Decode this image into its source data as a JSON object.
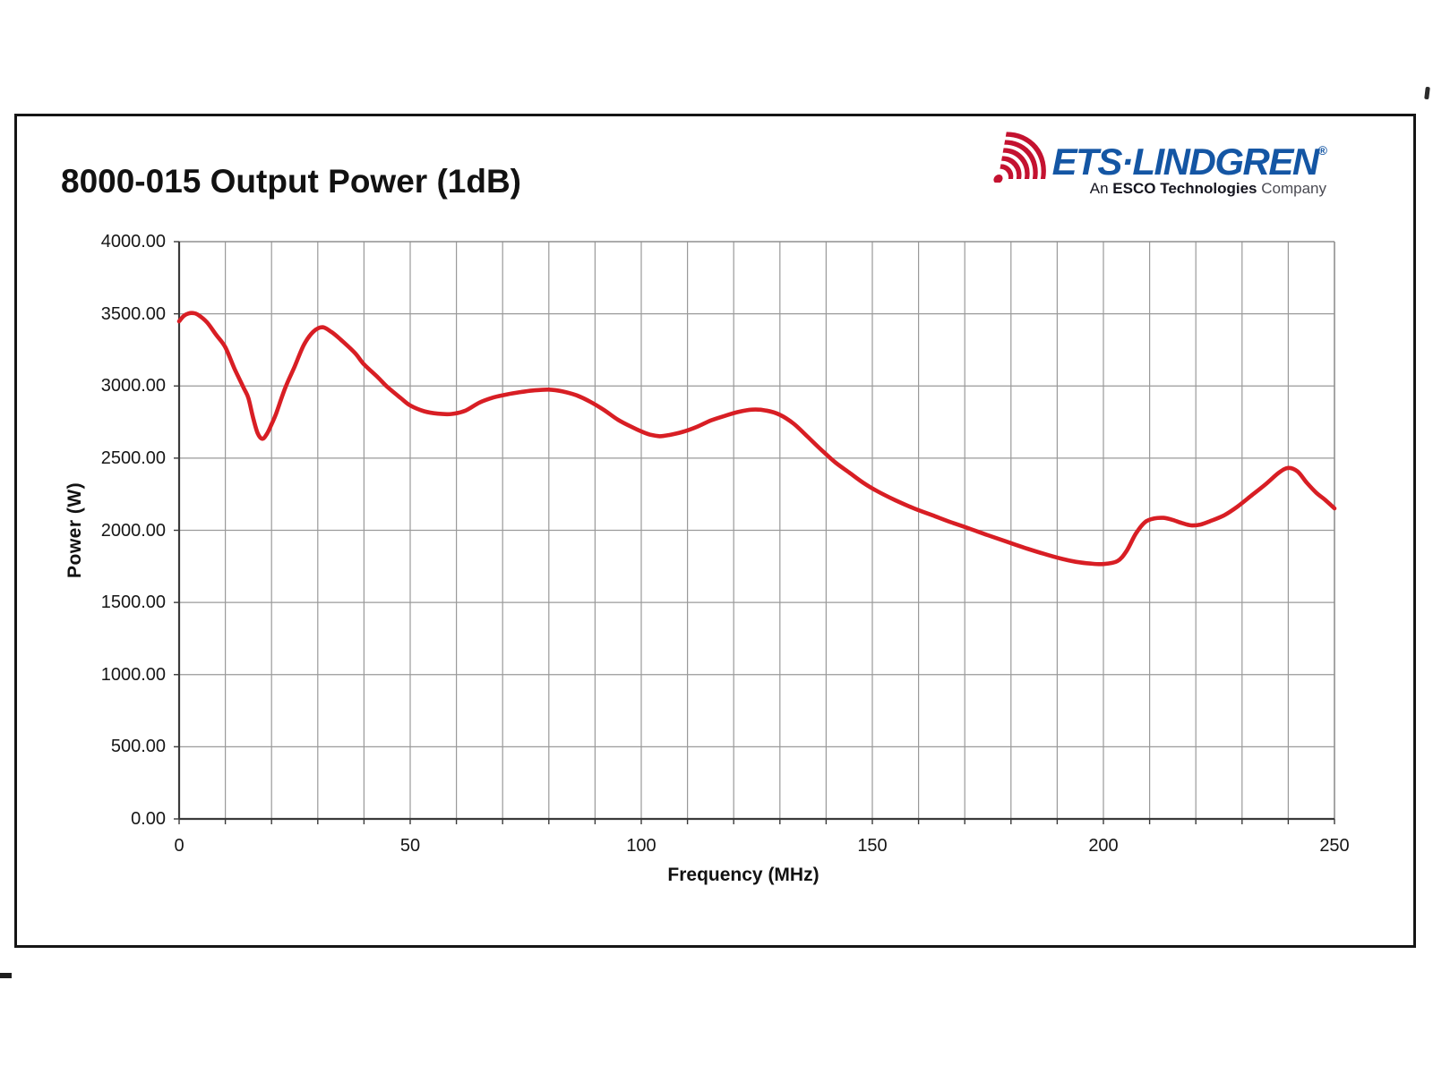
{
  "page_title": "8000-015 Output Power (1dB)",
  "logo": {
    "brand": "ETS·LINDGREN",
    "registered": "®",
    "tagline_prefix": "An ",
    "tagline_bold": "ESCO Technologies",
    "tagline_suffix": " Company",
    "brand_color": "#1456A4",
    "icon_color": "#C41230",
    "icon_name": "radio-waves-icon"
  },
  "chart_data": {
    "type": "line",
    "title": "8000-015 Output Power (1dB)",
    "xlabel": "Frequency (MHz)",
    "ylabel": "Power (W)",
    "xlim": [
      0,
      250
    ],
    "ylim": [
      0,
      4000
    ],
    "x_ticks": [
      0,
      50,
      100,
      150,
      200,
      250
    ],
    "x_tick_labels": [
      "0",
      "50",
      "100",
      "150",
      "200",
      "250"
    ],
    "y_ticks": [
      4000,
      3500,
      3000,
      2500,
      2000,
      1500,
      1000,
      500,
      0
    ],
    "y_tick_labels": [
      "4000.00",
      "3500.00",
      "3000.00",
      "2500.00",
      "2000.00",
      "1500.00",
      "1000.00",
      "500.00",
      "0.00"
    ],
    "x_grid_step": 10,
    "y_grid_step": 500,
    "grid": true,
    "legend": "none",
    "grid_color": "#9a9a9a",
    "line_color": "#d81e24",
    "series": [
      {
        "name": "Output Power (1dB)",
        "points": [
          [
            0,
            3448
          ],
          [
            1,
            3485
          ],
          [
            2,
            3502
          ],
          [
            3,
            3505
          ],
          [
            4,
            3495
          ],
          [
            6,
            3442
          ],
          [
            8,
            3355
          ],
          [
            10,
            3268
          ],
          [
            12,
            3118
          ],
          [
            14,
            2985
          ],
          [
            15,
            2915
          ],
          [
            16,
            2780
          ],
          [
            17,
            2672
          ],
          [
            18,
            2634
          ],
          [
            19,
            2668
          ],
          [
            20,
            2735
          ],
          [
            21,
            2810
          ],
          [
            23,
            2990
          ],
          [
            25,
            3135
          ],
          [
            27,
            3285
          ],
          [
            29,
            3375
          ],
          [
            31,
            3407
          ],
          [
            33,
            3373
          ],
          [
            35,
            3320
          ],
          [
            38,
            3230
          ],
          [
            40,
            3150
          ],
          [
            43,
            3060
          ],
          [
            45,
            2995
          ],
          [
            48,
            2915
          ],
          [
            50,
            2865
          ],
          [
            53,
            2825
          ],
          [
            56,
            2808
          ],
          [
            59,
            2806
          ],
          [
            62,
            2830
          ],
          [
            65,
            2885
          ],
          [
            68,
            2920
          ],
          [
            71,
            2942
          ],
          [
            74,
            2958
          ],
          [
            77,
            2970
          ],
          [
            80,
            2975
          ],
          [
            83,
            2962
          ],
          [
            86,
            2935
          ],
          [
            89,
            2890
          ],
          [
            92,
            2832
          ],
          [
            95,
            2765
          ],
          [
            98,
            2715
          ],
          [
            100,
            2685
          ],
          [
            102,
            2662
          ],
          [
            104,
            2652
          ],
          [
            106,
            2660
          ],
          [
            109,
            2682
          ],
          [
            112,
            2716
          ],
          [
            115,
            2760
          ],
          [
            118,
            2792
          ],
          [
            121,
            2820
          ],
          [
            124,
            2836
          ],
          [
            127,
            2830
          ],
          [
            130,
            2800
          ],
          [
            133,
            2738
          ],
          [
            136,
            2648
          ],
          [
            139,
            2556
          ],
          [
            142,
            2470
          ],
          [
            145,
            2400
          ],
          [
            148,
            2330
          ],
          [
            151,
            2272
          ],
          [
            155,
            2208
          ],
          [
            159,
            2152
          ],
          [
            163,
            2104
          ],
          [
            167,
            2056
          ],
          [
            171,
            2012
          ],
          [
            175,
            1966
          ],
          [
            179,
            1922
          ],
          [
            183,
            1878
          ],
          [
            187,
            1838
          ],
          [
            191,
            1802
          ],
          [
            194,
            1782
          ],
          [
            197,
            1770
          ],
          [
            200,
            1766
          ],
          [
            203,
            1786
          ],
          [
            205,
            1856
          ],
          [
            207,
            1976
          ],
          [
            209,
            2056
          ],
          [
            211,
            2082
          ],
          [
            213,
            2086
          ],
          [
            215,
            2072
          ],
          [
            217,
            2050
          ],
          [
            219,
            2034
          ],
          [
            221,
            2040
          ],
          [
            223,
            2062
          ],
          [
            226,
            2102
          ],
          [
            229,
            2164
          ],
          [
            232,
            2240
          ],
          [
            235,
            2316
          ],
          [
            238,
            2400
          ],
          [
            240,
            2432
          ],
          [
            242,
            2408
          ],
          [
            244,
            2330
          ],
          [
            246,
            2262
          ],
          [
            248,
            2210
          ],
          [
            250,
            2152
          ]
        ]
      }
    ]
  }
}
